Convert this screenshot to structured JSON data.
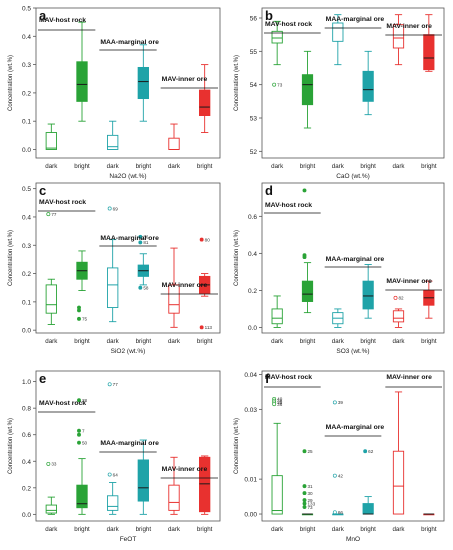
{
  "chart_data": [
    {
      "type": "boxplot",
      "panel_letter": "a",
      "xlabel": "Na2O (wt.%)",
      "ylabel": "Concentration (wt.%)",
      "ylim": [
        -0.03,
        0.5
      ],
      "yticks": [
        0.0,
        0.1,
        0.2,
        0.3,
        0.4,
        0.5
      ],
      "yticklabels": [
        "0.0",
        "0.1",
        "0.2",
        "0.3",
        "0.4",
        "0.5"
      ],
      "categories": [
        "dark",
        "bright",
        "dark",
        "bright",
        "dark",
        "bright"
      ],
      "group_labels": [
        "MAV-host rock",
        "MAA-marginal ore",
        "MAV-inner ore"
      ],
      "colors": [
        "#2aa337",
        "#2aa337",
        "#1fa3a8",
        "#1fa3a8",
        "#e8312f",
        "#e8312f"
      ],
      "boxes": [
        {
          "min": 0.0,
          "q1": 0.0,
          "median": 0.005,
          "q3": 0.06,
          "max": 0.09,
          "filled": false
        },
        {
          "min": 0.1,
          "q1": 0.17,
          "median": 0.23,
          "q3": 0.31,
          "max": 0.45,
          "filled": true
        },
        {
          "min": 0.0,
          "q1": 0.0,
          "median": 0.01,
          "q3": 0.05,
          "max": 0.1,
          "filled": false
        },
        {
          "min": 0.1,
          "q1": 0.18,
          "median": 0.24,
          "q3": 0.29,
          "max": 0.37,
          "filled": true
        },
        {
          "min": 0.0,
          "q1": 0.0,
          "median": 0.0,
          "q3": 0.04,
          "max": 0.09,
          "filled": false
        },
        {
          "min": 0.06,
          "q1": 0.12,
          "median": 0.15,
          "q3": 0.21,
          "max": 0.3,
          "filled": true
        }
      ],
      "outliers": []
    },
    {
      "type": "boxplot",
      "panel_letter": "b",
      "xlabel": "CaO (wt.%)",
      "ylabel": "Concentration (wt.%)",
      "ylim": [
        51.8,
        56.3
      ],
      "yticks": [
        52,
        53,
        54,
        55,
        56
      ],
      "yticklabels": [
        "52",
        "53",
        "54",
        "55",
        "56"
      ],
      "categories": [
        "dark",
        "bright",
        "dark",
        "bright",
        "dark",
        "bright"
      ],
      "group_labels": [
        "MAV-host rock",
        "MAA-marginal ore",
        "MAV-inner ore"
      ],
      "colors": [
        "#2aa337",
        "#2aa337",
        "#1fa3a8",
        "#1fa3a8",
        "#e8312f",
        "#e8312f"
      ],
      "boxes": [
        {
          "min": 54.6,
          "q1": 55.25,
          "median": 55.4,
          "q3": 55.6,
          "max": 55.9,
          "filled": false
        },
        {
          "min": 52.7,
          "q1": 53.4,
          "median": 54.0,
          "q3": 54.3,
          "max": 55.0,
          "filled": true
        },
        {
          "min": 54.6,
          "q1": 55.3,
          "median": 55.7,
          "q3": 55.85,
          "max": 56.1,
          "filled": false
        },
        {
          "min": 53.1,
          "q1": 53.5,
          "median": 53.85,
          "q3": 54.4,
          "max": 55.0,
          "filled": true
        },
        {
          "min": 54.6,
          "q1": 55.1,
          "median": 55.4,
          "q3": 55.8,
          "max": 56.1,
          "filled": false
        },
        {
          "min": 54.4,
          "q1": 54.45,
          "median": 54.8,
          "q3": 55.5,
          "max": 56.1,
          "filled": true
        }
      ],
      "outliers": [
        {
          "box": 0,
          "y": 54.0,
          "label": "73"
        }
      ]
    },
    {
      "type": "boxplot",
      "panel_letter": "c",
      "xlabel": "SiO2 (wt.%)",
      "ylabel": "Concentration (wt.%)",
      "ylim": [
        -0.01,
        0.52
      ],
      "yticks": [
        0.0,
        0.1,
        0.2,
        0.3,
        0.4,
        0.5
      ],
      "yticklabels": [
        "0.0",
        "0.1",
        "0.2",
        "0.3",
        "0.4",
        "0.5"
      ],
      "categories": [
        "dark",
        "bright",
        "dark",
        "bright",
        "dark",
        "bright"
      ],
      "group_labels": [
        "MAV-host rock",
        "MAA-marginal ore",
        "MAV-inner ore"
      ],
      "colors": [
        "#2aa337",
        "#2aa337",
        "#1fa3a8",
        "#1fa3a8",
        "#e8312f",
        "#e8312f"
      ],
      "boxes": [
        {
          "min": 0.02,
          "q1": 0.06,
          "median": 0.09,
          "q3": 0.16,
          "max": 0.18,
          "filled": false
        },
        {
          "min": 0.14,
          "q1": 0.18,
          "median": 0.21,
          "q3": 0.24,
          "max": 0.28,
          "filled": true
        },
        {
          "min": 0.03,
          "q1": 0.08,
          "median": 0.16,
          "q3": 0.22,
          "max": 0.32,
          "filled": false
        },
        {
          "min": 0.16,
          "q1": 0.19,
          "median": 0.21,
          "q3": 0.23,
          "max": 0.27,
          "filled": true
        },
        {
          "min": 0.01,
          "q1": 0.06,
          "median": 0.09,
          "q3": 0.16,
          "max": 0.29,
          "filled": false
        },
        {
          "min": 0.12,
          "q1": 0.13,
          "median": 0.16,
          "q3": 0.19,
          "max": 0.2,
          "filled": true
        }
      ],
      "outliers": [
        {
          "box": 0,
          "y": 0.41,
          "label": "77"
        },
        {
          "box": 1,
          "y": 0.08,
          "label": ""
        },
        {
          "box": 1,
          "y": 0.07,
          "label": ""
        },
        {
          "box": 1,
          "y": 0.04,
          "label": "75"
        },
        {
          "box": 2,
          "y": 0.43,
          "label": "69"
        },
        {
          "box": 3,
          "y": 0.33,
          "label": "86"
        },
        {
          "box": 3,
          "y": 0.31,
          "label": "81"
        },
        {
          "box": 3,
          "y": 0.15,
          "label": "58"
        },
        {
          "box": 5,
          "y": 0.32,
          "label": "80"
        },
        {
          "box": 5,
          "y": 0.01,
          "label": "113"
        }
      ]
    },
    {
      "type": "boxplot",
      "panel_letter": "d",
      "xlabel": "SO3 (wt.%)",
      "ylabel": "Concentration (wt.%)",
      "ylim": [
        -0.03,
        0.78
      ],
      "yticks": [
        0.0,
        0.2,
        0.4,
        0.6
      ],
      "yticklabels": [
        "0.0",
        "0.2",
        "0.4",
        "0.6"
      ],
      "categories": [
        "dark",
        "bright",
        "dark",
        "bright",
        "dark",
        "bright"
      ],
      "group_labels": [
        "MAV-host rock",
        "MAA-marginal ore",
        "MAV-inner ore"
      ],
      "colors": [
        "#2aa337",
        "#2aa337",
        "#1fa3a8",
        "#1fa3a8",
        "#e8312f",
        "#e8312f"
      ],
      "boxes": [
        {
          "min": 0.0,
          "q1": 0.02,
          "median": 0.05,
          "q3": 0.1,
          "max": 0.17,
          "filled": false
        },
        {
          "min": 0.08,
          "q1": 0.14,
          "median": 0.18,
          "q3": 0.25,
          "max": 0.35,
          "filled": true
        },
        {
          "min": 0.0,
          "q1": 0.02,
          "median": 0.05,
          "q3": 0.08,
          "max": 0.1,
          "filled": false
        },
        {
          "min": 0.05,
          "q1": 0.1,
          "median": 0.17,
          "q3": 0.25,
          "max": 0.34,
          "filled": true
        },
        {
          "min": 0.0,
          "q1": 0.03,
          "median": 0.05,
          "q3": 0.09,
          "max": 0.1,
          "filled": false
        },
        {
          "min": 0.05,
          "q1": 0.12,
          "median": 0.16,
          "q3": 0.2,
          "max": 0.25,
          "filled": true
        }
      ],
      "outliers": [
        {
          "box": 1,
          "y": 0.74,
          "label": ""
        },
        {
          "box": 1,
          "y": 0.39,
          "label": ""
        },
        {
          "box": 1,
          "y": 0.38,
          "label": ""
        },
        {
          "box": 4,
          "y": 0.16,
          "label": "82"
        }
      ]
    },
    {
      "type": "boxplot",
      "panel_letter": "e",
      "xlabel": "FeOT",
      "ylabel": "Concentration (wt.%)",
      "ylim": [
        -0.05,
        1.08
      ],
      "yticks": [
        0.0,
        0.2,
        0.4,
        0.6,
        0.8,
        1.0
      ],
      "yticklabels": [
        "0.0",
        "0.2",
        "0.4",
        "0.6",
        "0.8",
        "1.0"
      ],
      "categories": [
        "dark",
        "bright",
        "dark",
        "bright",
        "dark",
        "bright"
      ],
      "group_labels": [
        "MAV-host rock",
        "MAA-marginal ore",
        "MAV-inner ore"
      ],
      "colors": [
        "#2aa337",
        "#2aa337",
        "#1fa3a8",
        "#1fa3a8",
        "#e8312f",
        "#e8312f"
      ],
      "boxes": [
        {
          "min": 0.0,
          "q1": 0.01,
          "median": 0.03,
          "q3": 0.07,
          "max": 0.13,
          "filled": false
        },
        {
          "min": 0.0,
          "q1": 0.05,
          "median": 0.08,
          "q3": 0.22,
          "max": 0.42,
          "filled": true
        },
        {
          "min": 0.0,
          "q1": 0.03,
          "median": 0.06,
          "q3": 0.14,
          "max": 0.24,
          "filled": false
        },
        {
          "min": 0.0,
          "q1": 0.1,
          "median": 0.2,
          "q3": 0.41,
          "max": 0.56,
          "filled": true
        },
        {
          "min": 0.0,
          "q1": 0.03,
          "median": 0.09,
          "q3": 0.22,
          "max": 0.43,
          "filled": false
        },
        {
          "min": 0.0,
          "q1": 0.02,
          "median": 0.23,
          "q3": 0.43,
          "max": 0.44,
          "filled": true
        }
      ],
      "outliers": [
        {
          "box": 0,
          "y": 0.38,
          "label": "33"
        },
        {
          "box": 1,
          "y": 0.86,
          "label": "28"
        },
        {
          "box": 1,
          "y": 0.63,
          "label": "7"
        },
        {
          "box": 1,
          "y": 0.6,
          "label": ""
        },
        {
          "box": 1,
          "y": 0.54,
          "label": "50"
        },
        {
          "box": 2,
          "y": 0.98,
          "label": "77"
        },
        {
          "box": 2,
          "y": 0.3,
          "label": "64"
        }
      ]
    },
    {
      "type": "boxplot",
      "panel_letter": "f",
      "xlabel": "MnO",
      "ylabel": "Concentration (wt.%)",
      "ylim": [
        -0.002,
        0.041
      ],
      "yticks": [
        0.0,
        0.01,
        0.03,
        0.04
      ],
      "yticklabels": [
        "0.00",
        "0.01",
        "0.03",
        "0.04"
      ],
      "categories": [
        "dark",
        "bright",
        "dark",
        "bright",
        "dark",
        "bright"
      ],
      "group_labels": [
        "MAV-host rock",
        "MAA-marginal ore",
        "MAV-inner ore"
      ],
      "colors": [
        "#2aa337",
        "#2aa337",
        "#1fa3a8",
        "#1fa3a8",
        "#e8312f",
        "#e8312f"
      ],
      "boxes": [
        {
          "min": 0.0,
          "q1": 0.0,
          "median": 0.001,
          "q3": 0.011,
          "max": 0.026,
          "filled": false
        },
        {
          "min": 0.0,
          "q1": 0.0,
          "median": 0.0,
          "q3": 0.0,
          "max": 0.0,
          "filled": true
        },
        {
          "min": 0.0,
          "q1": 0.0,
          "median": 0.0,
          "q3": 0.0,
          "max": 0.0,
          "filled": false
        },
        {
          "min": 0.0,
          "q1": 0.0,
          "median": 0.0,
          "q3": 0.003,
          "max": 0.005,
          "filled": true
        },
        {
          "min": 0.0,
          "q1": 0.0,
          "median": 0.008,
          "q3": 0.018,
          "max": 0.035,
          "filled": false
        },
        {
          "min": 0.0,
          "q1": 0.0,
          "median": 0.0,
          "q3": 0.0,
          "max": 0.0,
          "filled": true
        }
      ],
      "outliers": [
        {
          "box": 0,
          "y": 0.033,
          "label": "40"
        },
        {
          "box": 0,
          "y": 0.0325,
          "label": "38"
        },
        {
          "box": 0,
          "y": 0.032,
          "label": "35"
        },
        {
          "box": 0,
          "y": 0.0315,
          "label": "36"
        },
        {
          "box": 1,
          "y": 0.018,
          "label": "25"
        },
        {
          "box": 1,
          "y": 0.008,
          "label": "31"
        },
        {
          "box": 1,
          "y": 0.006,
          "label": "30"
        },
        {
          "box": 1,
          "y": 0.004,
          "label": "29"
        },
        {
          "box": 1,
          "y": 0.003,
          "label": "133"
        },
        {
          "box": 1,
          "y": 0.002,
          "label": "73"
        },
        {
          "box": 2,
          "y": 0.032,
          "label": "39"
        },
        {
          "box": 2,
          "y": 0.011,
          "label": "42"
        },
        {
          "box": 2,
          "y": 0.0005,
          "label": "66"
        },
        {
          "box": 3,
          "y": 0.018,
          "label": "62"
        }
      ]
    }
  ]
}
